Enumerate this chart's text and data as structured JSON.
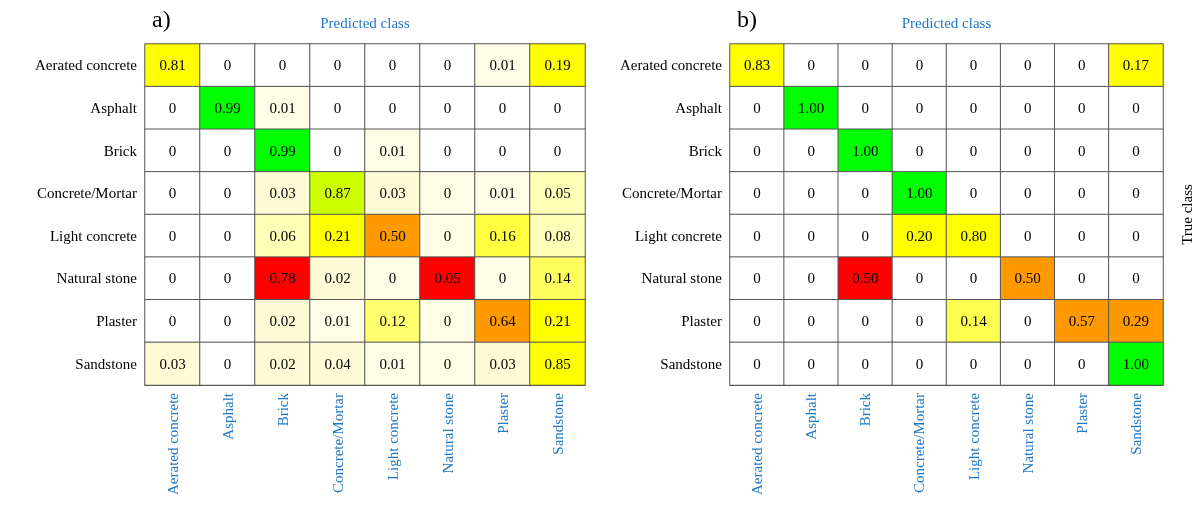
{
  "chart_data": [
    {
      "type": "heatmap",
      "title": "a)",
      "xlabel": "Predicted class",
      "data_labels": true,
      "categories": [
        "Aerated concrete",
        "Asphalt",
        "Brick",
        "Concrete/Mortar",
        "Light concrete",
        "Natural stone",
        "Plaster",
        "Sandstone"
      ],
      "y_categories": [
        "Aerated concrete",
        "Asphalt",
        "Brick",
        "Concrete/Mortar",
        "Light concrete",
        "Natural stone",
        "Plaster",
        "Sandstone"
      ],
      "cells": [
        [
          0.81,
          0,
          0,
          0,
          0,
          0,
          0.01,
          0.19
        ],
        [
          0,
          0.99,
          0.01,
          0,
          0,
          0,
          0,
          0
        ],
        [
          0,
          0,
          0.99,
          0,
          0.01,
          0,
          0,
          0
        ],
        [
          0,
          0,
          0.03,
          0.87,
          0.03,
          0,
          0.01,
          0.05
        ],
        [
          0,
          0,
          0.06,
          0.21,
          0.5,
          0,
          0.16,
          0.08
        ],
        [
          0,
          0,
          0.78,
          0.02,
          0,
          0.05,
          0,
          0.14
        ],
        [
          0,
          0,
          0.02,
          0.01,
          0.12,
          0,
          0.64,
          0.21
        ],
        [
          0.03,
          0,
          0.02,
          0.04,
          0.01,
          0,
          0.03,
          0.85
        ]
      ],
      "cell_labels": [
        [
          "0.81",
          "0",
          "0",
          "0",
          "0",
          "0",
          "0.01",
          "0.19"
        ],
        [
          "0",
          "0.99",
          "0.01",
          "0",
          "0",
          "0",
          "0",
          "0"
        ],
        [
          "0",
          "0",
          "0.99",
          "0",
          "0.01",
          "0",
          "0",
          "0"
        ],
        [
          "0",
          "0",
          "0.03",
          "0.87",
          "0.03",
          "0",
          "0.01",
          "0.05"
        ],
        [
          "0",
          "0",
          "0.06",
          "0.21",
          "0.50",
          "0",
          "0.16",
          "0.08"
        ],
        [
          "0",
          "0",
          "0.78",
          "0.02",
          "0",
          "0.05",
          "0",
          "0.14"
        ],
        [
          "0",
          "0",
          "0.02",
          "0.01",
          "0.12",
          "0",
          "0.64",
          "0.21"
        ],
        [
          "0.03",
          "0",
          "0.02",
          "0.04",
          "0.01",
          "0",
          "0.03",
          "0.85"
        ]
      ],
      "colors": [
        [
          "#ffff00",
          "#ffffff",
          "#ffffff",
          "#ffffff",
          "#ffffff",
          "#ffffff",
          "#fffde6",
          "#ffff00"
        ],
        [
          "#ffffff",
          "#00ff00",
          "#fffde6",
          "#ffffff",
          "#ffffff",
          "#ffffff",
          "#ffffff",
          "#ffffff"
        ],
        [
          "#ffffff",
          "#ffffff",
          "#00ff00",
          "#ffffff",
          "#fffde6",
          "#ffffff",
          "#ffffff",
          "#ffffff"
        ],
        [
          "#ffffff",
          "#ffffff",
          "#fffbd6",
          "#ccff00",
          "#fffbd6",
          "#fffde6",
          "#fffde6",
          "#ffffb8"
        ],
        [
          "#ffffff",
          "#ffffff",
          "#ffffb8",
          "#ffff00",
          "#ff9900",
          "#fffde6",
          "#ffff40",
          "#ffffb8"
        ],
        [
          "#ffffff",
          "#ffffff",
          "#ff0000",
          "#fffbd6",
          "#fffde6",
          "#ff0000",
          "#fffde6",
          "#ffff60"
        ],
        [
          "#ffffff",
          "#ffffff",
          "#fffbd6",
          "#fffde6",
          "#ffff70",
          "#fffde6",
          "#ff9900",
          "#ffff00"
        ],
        [
          "#fffbd6",
          "#ffffff",
          "#fffbd6",
          "#fffbd6",
          "#fffde6",
          "#fffde6",
          "#fffbd6",
          "#ffff00"
        ]
      ]
    },
    {
      "type": "heatmap",
      "title": "b)",
      "xlabel": "Predicted class",
      "ylabel": "True class",
      "data_labels": true,
      "categories": [
        "Aerated concrete",
        "Asphalt",
        "Brick",
        "Concrete/Mortar",
        "Light concrete",
        "Natural stone",
        "Plaster",
        "Sandstone"
      ],
      "y_categories": [
        "Aerated concrete",
        "Asphalt",
        "Brick",
        "Concrete/Mortar",
        "Light concrete",
        "Natural stone",
        "Plaster",
        "Sandstone"
      ],
      "cells": [
        [
          0.83,
          0,
          0,
          0,
          0,
          0,
          0,
          0.17
        ],
        [
          0,
          1,
          0,
          0,
          0,
          0,
          0,
          0
        ],
        [
          0,
          0,
          1,
          0,
          0,
          0,
          0,
          0
        ],
        [
          0,
          0,
          0,
          1,
          0,
          0,
          0,
          0
        ],
        [
          0,
          0,
          0,
          0.2,
          0.8,
          0,
          0,
          0
        ],
        [
          0,
          0,
          0.5,
          0,
          0,
          0.5,
          0,
          0
        ],
        [
          0,
          0,
          0,
          0,
          0.14,
          0,
          0.57,
          0.29
        ],
        [
          0,
          0,
          0,
          0,
          0,
          0,
          0,
          1
        ]
      ],
      "cell_labels": [
        [
          "0.83",
          "0",
          "0",
          "0",
          "0",
          "0",
          "0",
          "0.17"
        ],
        [
          "0",
          "1.00",
          "0",
          "0",
          "0",
          "0",
          "0",
          "0"
        ],
        [
          "0",
          "0",
          "1.00",
          "0",
          "0",
          "0",
          "0",
          "0"
        ],
        [
          "0",
          "0",
          "0",
          "1.00",
          "0",
          "0",
          "0",
          "0"
        ],
        [
          "0",
          "0",
          "0",
          "0.20",
          "0.80",
          "0",
          "0",
          "0"
        ],
        [
          "0",
          "0",
          "0.50",
          "0",
          "0",
          "0.50",
          "0",
          "0"
        ],
        [
          "0",
          "0",
          "0",
          "0",
          "0.14",
          "0",
          "0.57",
          "0.29"
        ],
        [
          "0",
          "0",
          "0",
          "0",
          "0",
          "0",
          "0",
          "1.00"
        ]
      ],
      "colors": [
        [
          "#ffff00",
          "#ffffff",
          "#ffffff",
          "#ffffff",
          "#ffffff",
          "#ffffff",
          "#ffffff",
          "#ffff00"
        ],
        [
          "#ffffff",
          "#00ff00",
          "#ffffff",
          "#ffffff",
          "#ffffff",
          "#ffffff",
          "#ffffff",
          "#ffffff"
        ],
        [
          "#ffffff",
          "#ffffff",
          "#00ff00",
          "#ffffff",
          "#ffffff",
          "#ffffff",
          "#ffffff",
          "#ffffff"
        ],
        [
          "#ffffff",
          "#ffffff",
          "#ffffff",
          "#00ff00",
          "#ffffff",
          "#ffffff",
          "#ffffff",
          "#ffffff"
        ],
        [
          "#ffffff",
          "#ffffff",
          "#ffffff",
          "#ffff00",
          "#ffff00",
          "#ffffff",
          "#ffffff",
          "#ffffff"
        ],
        [
          "#ffffff",
          "#ffffff",
          "#ff0000",
          "#ffffff",
          "#ffffff",
          "#ff9900",
          "#ffffff",
          "#ffffff"
        ],
        [
          "#ffffff",
          "#ffffff",
          "#ffffff",
          "#ffffff",
          "#ffff50",
          "#ffffff",
          "#ff9900",
          "#ff9900"
        ],
        [
          "#ffffff",
          "#ffffff",
          "#ffffff",
          "#ffffff",
          "#ffffff",
          "#ffffff",
          "#ffffff",
          "#00ff00"
        ]
      ]
    }
  ]
}
